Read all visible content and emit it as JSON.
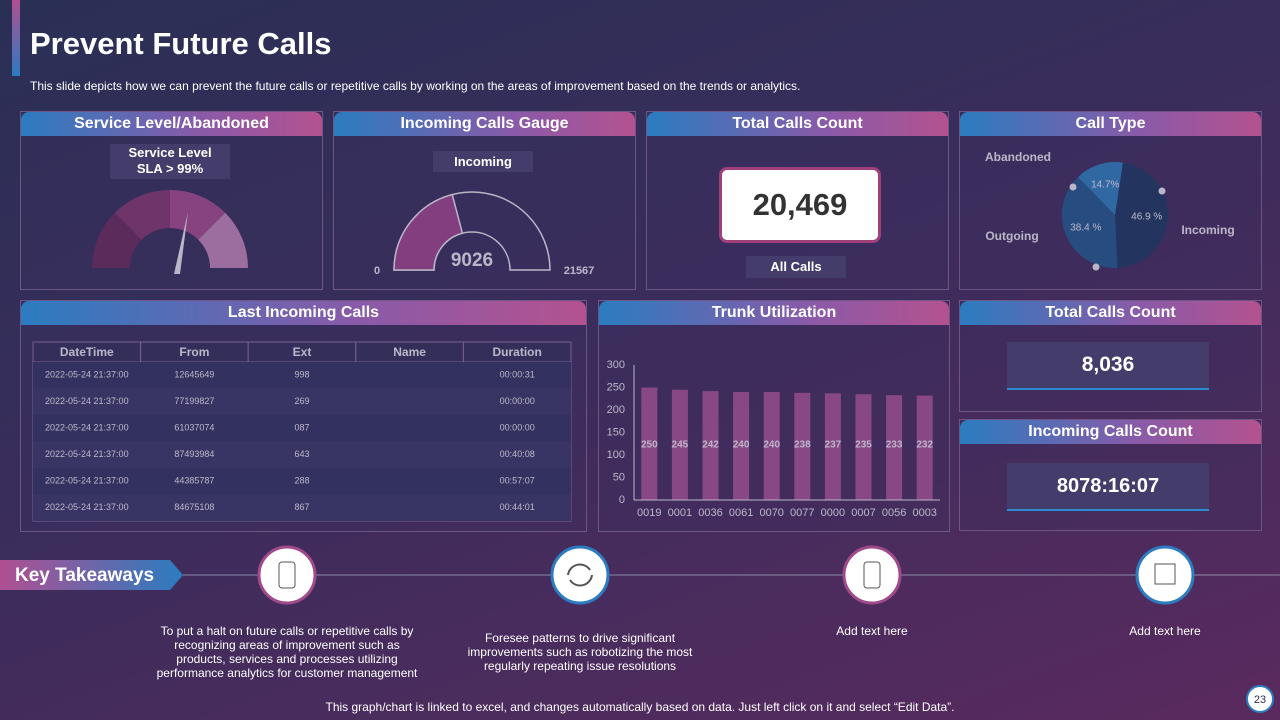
{
  "header": {
    "title": "Prevent Future Calls",
    "subtitle": "This slide depicts how we can prevent  the future calls or repetitive  calls by working on the areas of improvement  based on the trends or analytics."
  },
  "service_level": {
    "title": "Service Level/Abandoned",
    "label": "Service Level",
    "sublabel": "SLA > 99%"
  },
  "total_calls": {
    "title": "Total Calls Count",
    "value": "20,469",
    "label": "All Calls"
  },
  "last_calls": {
    "title": "Last Incoming Calls",
    "columns": [
      "DateTime",
      "From",
      "Ext",
      "Name",
      "Duration"
    ],
    "rows": [
      [
        "2022-05-24  21:37:00",
        "12645649",
        "998",
        null,
        "00:00:31"
      ],
      [
        "2022-05-24  21:37:00",
        "77199827",
        "269",
        null,
        "00:00:00"
      ],
      [
        "2022-05-24  21:37:00",
        "61037074",
        "087",
        null,
        "00:00:00"
      ],
      [
        "2022-05-24  21:37:00",
        "87493984",
        "643",
        null,
        "00:40:08"
      ],
      [
        "2022-05-24  21:37:00",
        "44385787",
        "288",
        null,
        "00:57:07"
      ],
      [
        "2022-05-24  21:37:00",
        "84675108",
        "867",
        null,
        "00:44:01"
      ]
    ]
  },
  "total_calls_2": {
    "title": "Total Calls Count",
    "value": "8,036"
  },
  "incoming_count": {
    "title": "Incoming Calls Count",
    "value": "8078:16:07"
  },
  "takeaways": {
    "title": "Key Takeaways",
    "items": [
      "To put a halt on future calls or repetitive calls by\nrecognizing areas of improvement such as\nproducts, services and processes utilizing\nperformance analytics for customer management",
      "Foresee patterns to drive significant\nimprovements such as  robotizing the most\nregularly repeating issue resolutions",
      "Add text here",
      "Add text here"
    ]
  },
  "footer": {
    "note": "This graph/chart is linked to excel,  and changes automatically based on data. Just left click on it and select “Edit Data”.",
    "page": "23"
  },
  "chart_data": [
    {
      "type": "gauge",
      "title": "Incoming Calls Gauge",
      "label": "Incoming",
      "value": 9026,
      "ylim": [
        0,
        21567
      ],
      "color": "#a8478f"
    },
    {
      "type": "pie",
      "title": "Call Type",
      "categories": [
        "Incoming",
        "Outgoing",
        "Abandoned"
      ],
      "values": [
        46.9,
        38.4,
        14.7
      ],
      "value_labels": [
        "46.9 %",
        "38.4 %",
        "14.7%"
      ],
      "colors": [
        "#163a60",
        "#1d5f93",
        "#2a88c8"
      ]
    },
    {
      "type": "bar",
      "title": "Trunk Utilization",
      "categories": [
        "0019",
        "0001",
        "0036",
        "0061",
        "0070",
        "0077",
        "0000",
        "0007",
        "0056",
        "0003"
      ],
      "values": [
        250,
        245,
        242,
        240,
        240,
        238,
        237,
        235,
        233,
        232
      ],
      "color": "#b0569a",
      "ylim": [
        0,
        300
      ],
      "yticks": [
        0,
        50,
        100,
        150,
        200,
        250,
        300
      ]
    }
  ]
}
